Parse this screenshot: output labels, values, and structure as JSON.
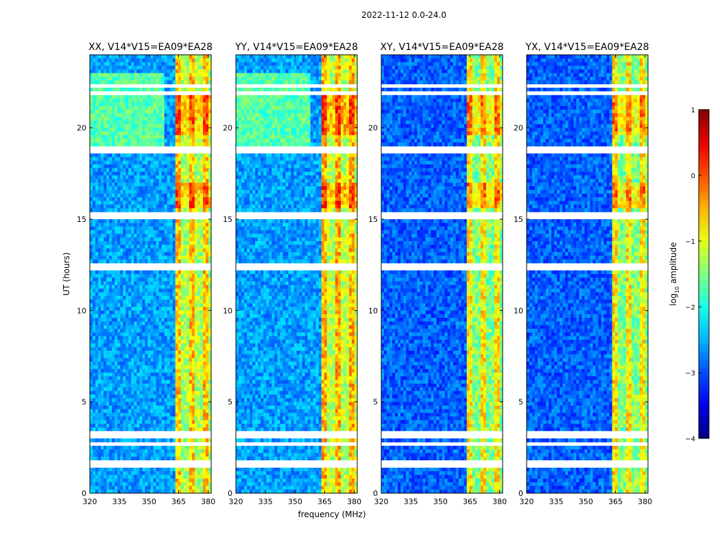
{
  "figure": {
    "suptitle": "2022-11-12 0.0-24.0",
    "ylabel": "UT (hours)",
    "xlabel": "frequency (MHz)",
    "colorbar": {
      "label": "log$_{10}$ amplitude",
      "label_main": "log",
      "label_sub": "10",
      "label_rest": " amplitude",
      "ticks": [
        "1",
        "0",
        "−1",
        "−2",
        "−3",
        "−4"
      ],
      "colormap": "jet",
      "range": [
        -4,
        1
      ]
    }
  },
  "chart_data": [
    {
      "type": "heatmap",
      "title": "XX, V14*V15=EA09*EA28",
      "xlim": [
        320,
        381.5
      ],
      "ylim": [
        0,
        24
      ],
      "xticks": [
        "320",
        "335",
        "350",
        "365",
        "380"
      ],
      "yticks": [
        "0",
        "5",
        "10",
        "15",
        "20"
      ],
      "background_level": -2.6,
      "band_level": -0.6,
      "band_mhz": [
        363.5,
        382
      ],
      "night_green_hours": [
        19,
        23
      ]
    },
    {
      "type": "heatmap",
      "title": "YY, V14*V15=EA09*EA28",
      "xlim": [
        320,
        381.5
      ],
      "ylim": [
        0,
        24
      ],
      "xticks": [
        "320",
        "335",
        "350",
        "365",
        "380"
      ],
      "yticks": [
        "0",
        "5",
        "10",
        "15",
        "20"
      ],
      "background_level": -2.6,
      "band_level": -0.5,
      "band_mhz": [
        363.5,
        382
      ],
      "night_green_hours": [
        19,
        23
      ]
    },
    {
      "type": "heatmap",
      "title": "XY, V14*V15=EA09*EA28",
      "xlim": [
        320,
        381.5
      ],
      "ylim": [
        0,
        24
      ],
      "xticks": [
        "320",
        "335",
        "350",
        "365",
        "380"
      ],
      "yticks": [
        "0",
        "5",
        "10",
        "15",
        "20"
      ],
      "background_level": -2.9,
      "band_level": -0.8,
      "band_mhz": [
        363.5,
        382
      ],
      "night_green_hours": []
    },
    {
      "type": "heatmap",
      "title": "YX, V14*V15=EA09*EA28",
      "xlim": [
        320,
        381.5
      ],
      "ylim": [
        0,
        24
      ],
      "xticks": [
        "320",
        "335",
        "350",
        "365",
        "380"
      ],
      "yticks": [
        "0",
        "5",
        "10",
        "15",
        "20"
      ],
      "background_level": -2.9,
      "band_level": -0.8,
      "band_mhz": [
        363.5,
        382
      ],
      "night_green_hours": []
    }
  ],
  "flagged_gaps_hours": [
    [
      1.4,
      1.8
    ],
    [
      2.6,
      2.7
    ],
    [
      3.0,
      3.2
    ],
    [
      3.3,
      3.4
    ],
    [
      12.3,
      12.5
    ],
    [
      15.1,
      15.3
    ],
    [
      18.7,
      18.9
    ],
    [
      21.8,
      22.0
    ],
    [
      22.2,
      22.3
    ]
  ]
}
